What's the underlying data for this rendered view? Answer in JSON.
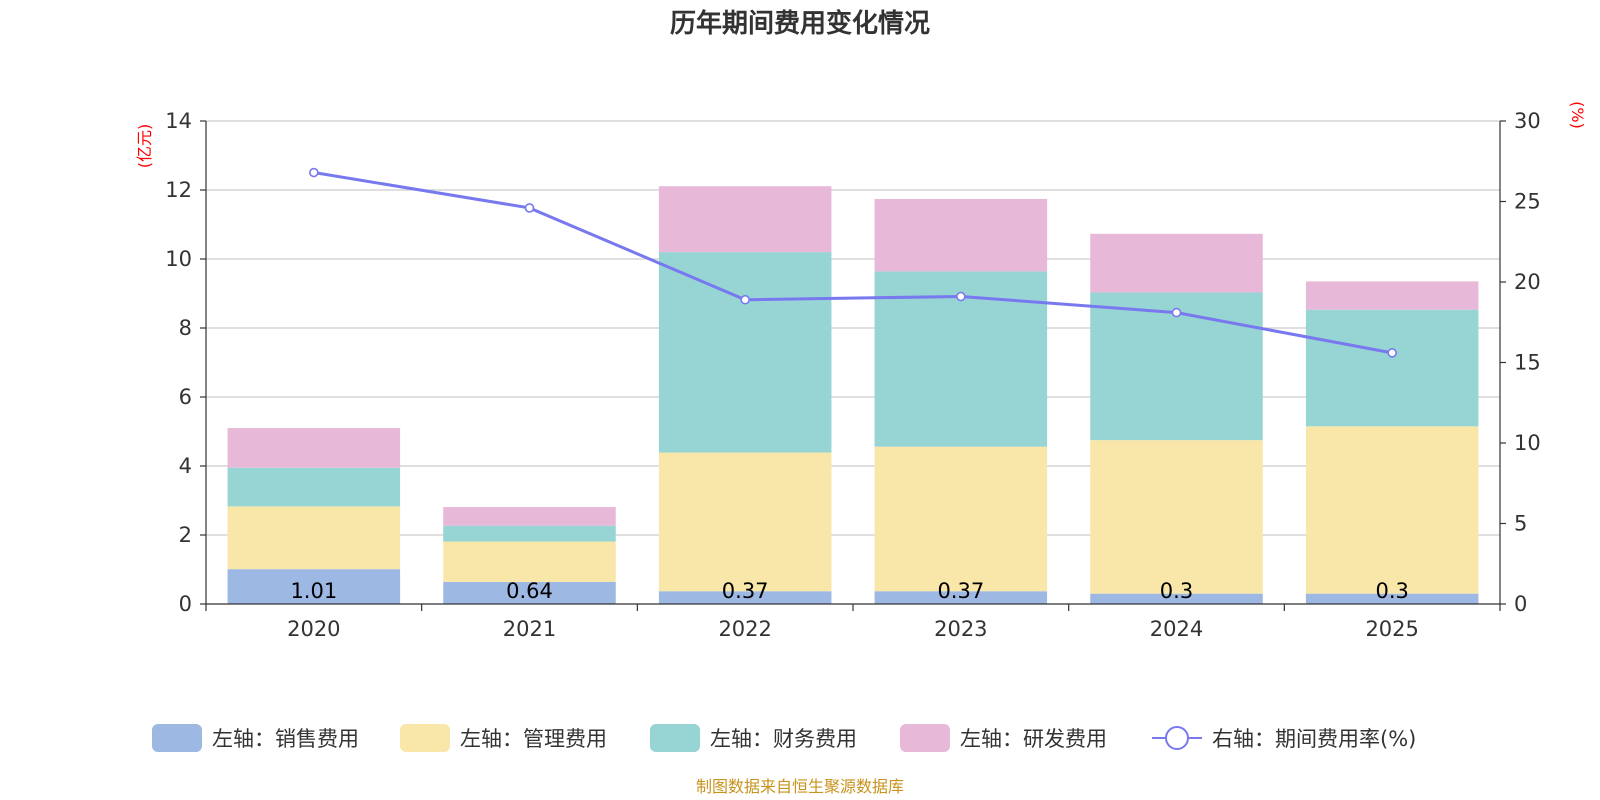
{
  "chart_data": {
    "type": "bar",
    "title": "历年期间费用变化情况",
    "categories": [
      "2020",
      "2021",
      "2022",
      "2023",
      "2024",
      "2025"
    ],
    "left_axis": {
      "unit": "(亿元)",
      "ylim": [
        0,
        14
      ],
      "ticks": [
        0,
        2,
        4,
        6,
        8,
        10,
        12,
        14
      ]
    },
    "right_axis": {
      "unit": "(%)",
      "ylim": [
        0,
        30
      ],
      "ticks": [
        0,
        5,
        10,
        15,
        20,
        25,
        30
      ]
    },
    "series": [
      {
        "name": "左轴：销售费用",
        "kind": "bar",
        "axis": "left",
        "color": "#9db8e2",
        "values": [
          1.01,
          0.64,
          0.37,
          0.37,
          0.3,
          0.3
        ],
        "labels": [
          "1.01",
          "0.64",
          "0.37",
          "0.37",
          "0.3",
          "0.3"
        ]
      },
      {
        "name": "左轴：管理费用",
        "kind": "bar",
        "axis": "left",
        "color": "#f8e7a8",
        "values": [
          1.82,
          1.17,
          4.02,
          4.19,
          4.45,
          4.85
        ]
      },
      {
        "name": "左轴：财务费用",
        "kind": "bar",
        "axis": "left",
        "color": "#97d4d4",
        "values": [
          1.12,
          0.46,
          5.81,
          5.08,
          4.28,
          3.38
        ]
      },
      {
        "name": "左轴：研发费用",
        "kind": "bar",
        "axis": "left",
        "color": "#e8b8d8",
        "values": [
          1.15,
          0.54,
          1.91,
          2.1,
          1.7,
          0.82
        ]
      },
      {
        "name": "右轴：期间费用率(%)",
        "kind": "line",
        "axis": "right",
        "color": "#7878ef",
        "values": [
          26.8,
          24.6,
          18.9,
          19.1,
          18.1,
          15.6
        ]
      }
    ],
    "legend_position": "bottom",
    "grid": true
  },
  "footer": {
    "source": "制图数据来自恒生聚源数据库"
  }
}
